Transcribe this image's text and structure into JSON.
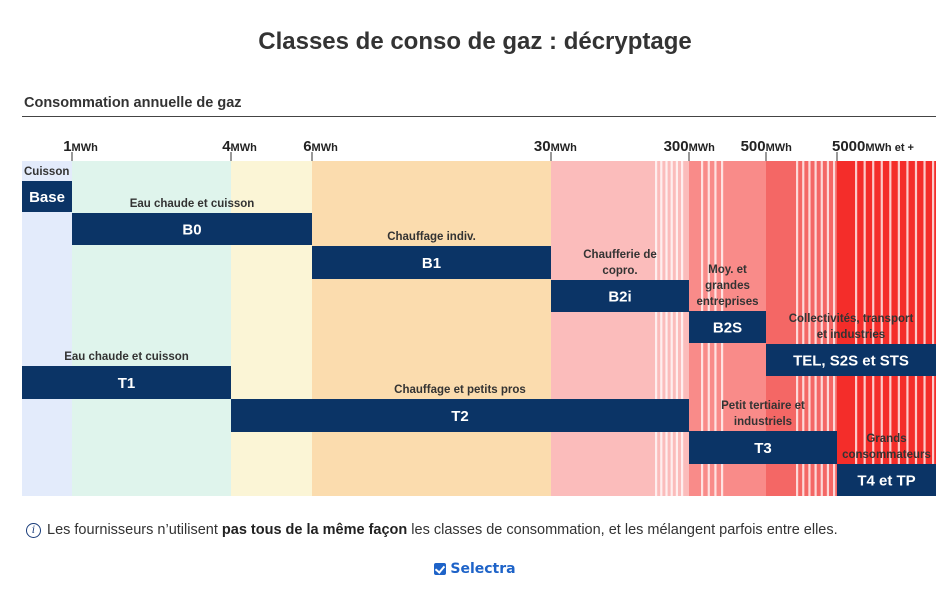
{
  "title": "Classes de conso de gaz : décryptage",
  "subtitle": "Consommation annuelle de gaz",
  "footnote": {
    "icon": "info-icon",
    "before": "Les fournisseurs n’utilisent ",
    "bold": "pas tous de la même façon",
    "after": " les classes de consommation, et les mélangent parfois entre elles."
  },
  "logo": {
    "text": "Selectra",
    "color": "#1e63c8"
  },
  "chart_data": {
    "type": "bar",
    "orientation": "horizontal-range",
    "xlabel": "Consommation annuelle de gaz",
    "x_scale": "log-like (segmented)",
    "unit": "MWh",
    "ticks": [
      {
        "value": "1",
        "unit": "MWh"
      },
      {
        "value": "4",
        "unit": "MWh"
      },
      {
        "value": "6",
        "unit": "MWh"
      },
      {
        "value": "30",
        "unit": "MWh"
      },
      {
        "value": "300",
        "unit": "MWh"
      },
      {
        "value": "500",
        "unit": "MWh"
      },
      {
        "value": "5000",
        "unit": "MWh et +"
      }
    ],
    "zones": [
      {
        "from": 0,
        "to": 1,
        "color": "#e3ebfb"
      },
      {
        "from": 1,
        "to": 4,
        "color": "#dff4ec"
      },
      {
        "from": 4,
        "to": 6,
        "color": "#fbf5d6"
      },
      {
        "from": 6,
        "to": 30,
        "color": "#fbdcae"
      },
      {
        "from": 30,
        "to": 300,
        "color": "#fbbcbb"
      },
      {
        "from": 300,
        "to": 500,
        "color": "#f98b89"
      },
      {
        "from": 500,
        "to": 5000,
        "color": "#f46765"
      },
      {
        "from": 5000,
        "to": null,
        "color": "#f42d2a"
      }
    ],
    "bar_color": "#0b3466",
    "series": [
      {
        "label": "Base",
        "from": 0,
        "to": 1,
        "annotation": "Cuisson"
      },
      {
        "label": "B0",
        "from": 1,
        "to": 6,
        "annotation": "Eau chaude et cuisson"
      },
      {
        "label": "B1",
        "from": 6,
        "to": 30,
        "annotation": "Chauffage indiv."
      },
      {
        "label": "B2i",
        "from": 30,
        "to": 300,
        "annotation": "Chaufferie de copro."
      },
      {
        "label": "B2S",
        "from": 300,
        "to": 500,
        "annotation": "Moy. et grandes entreprises"
      },
      {
        "label": "TEL, S2S et STS",
        "from": 500,
        "to": null,
        "annotation": "Collectivités, transport et industries"
      },
      {
        "label": "T1",
        "from": 0,
        "to": 4,
        "annotation": "Eau chaude et cuisson"
      },
      {
        "label": "T2",
        "from": 4,
        "to": 300,
        "annotation": "Chauffage et petits pros"
      },
      {
        "label": "T3",
        "from": 300,
        "to": 5000,
        "annotation": "Petit tertiaire et industriels"
      },
      {
        "label": "T4 et TP",
        "from": 5000,
        "to": null,
        "annotation": "Grands consommateurs"
      }
    ]
  }
}
